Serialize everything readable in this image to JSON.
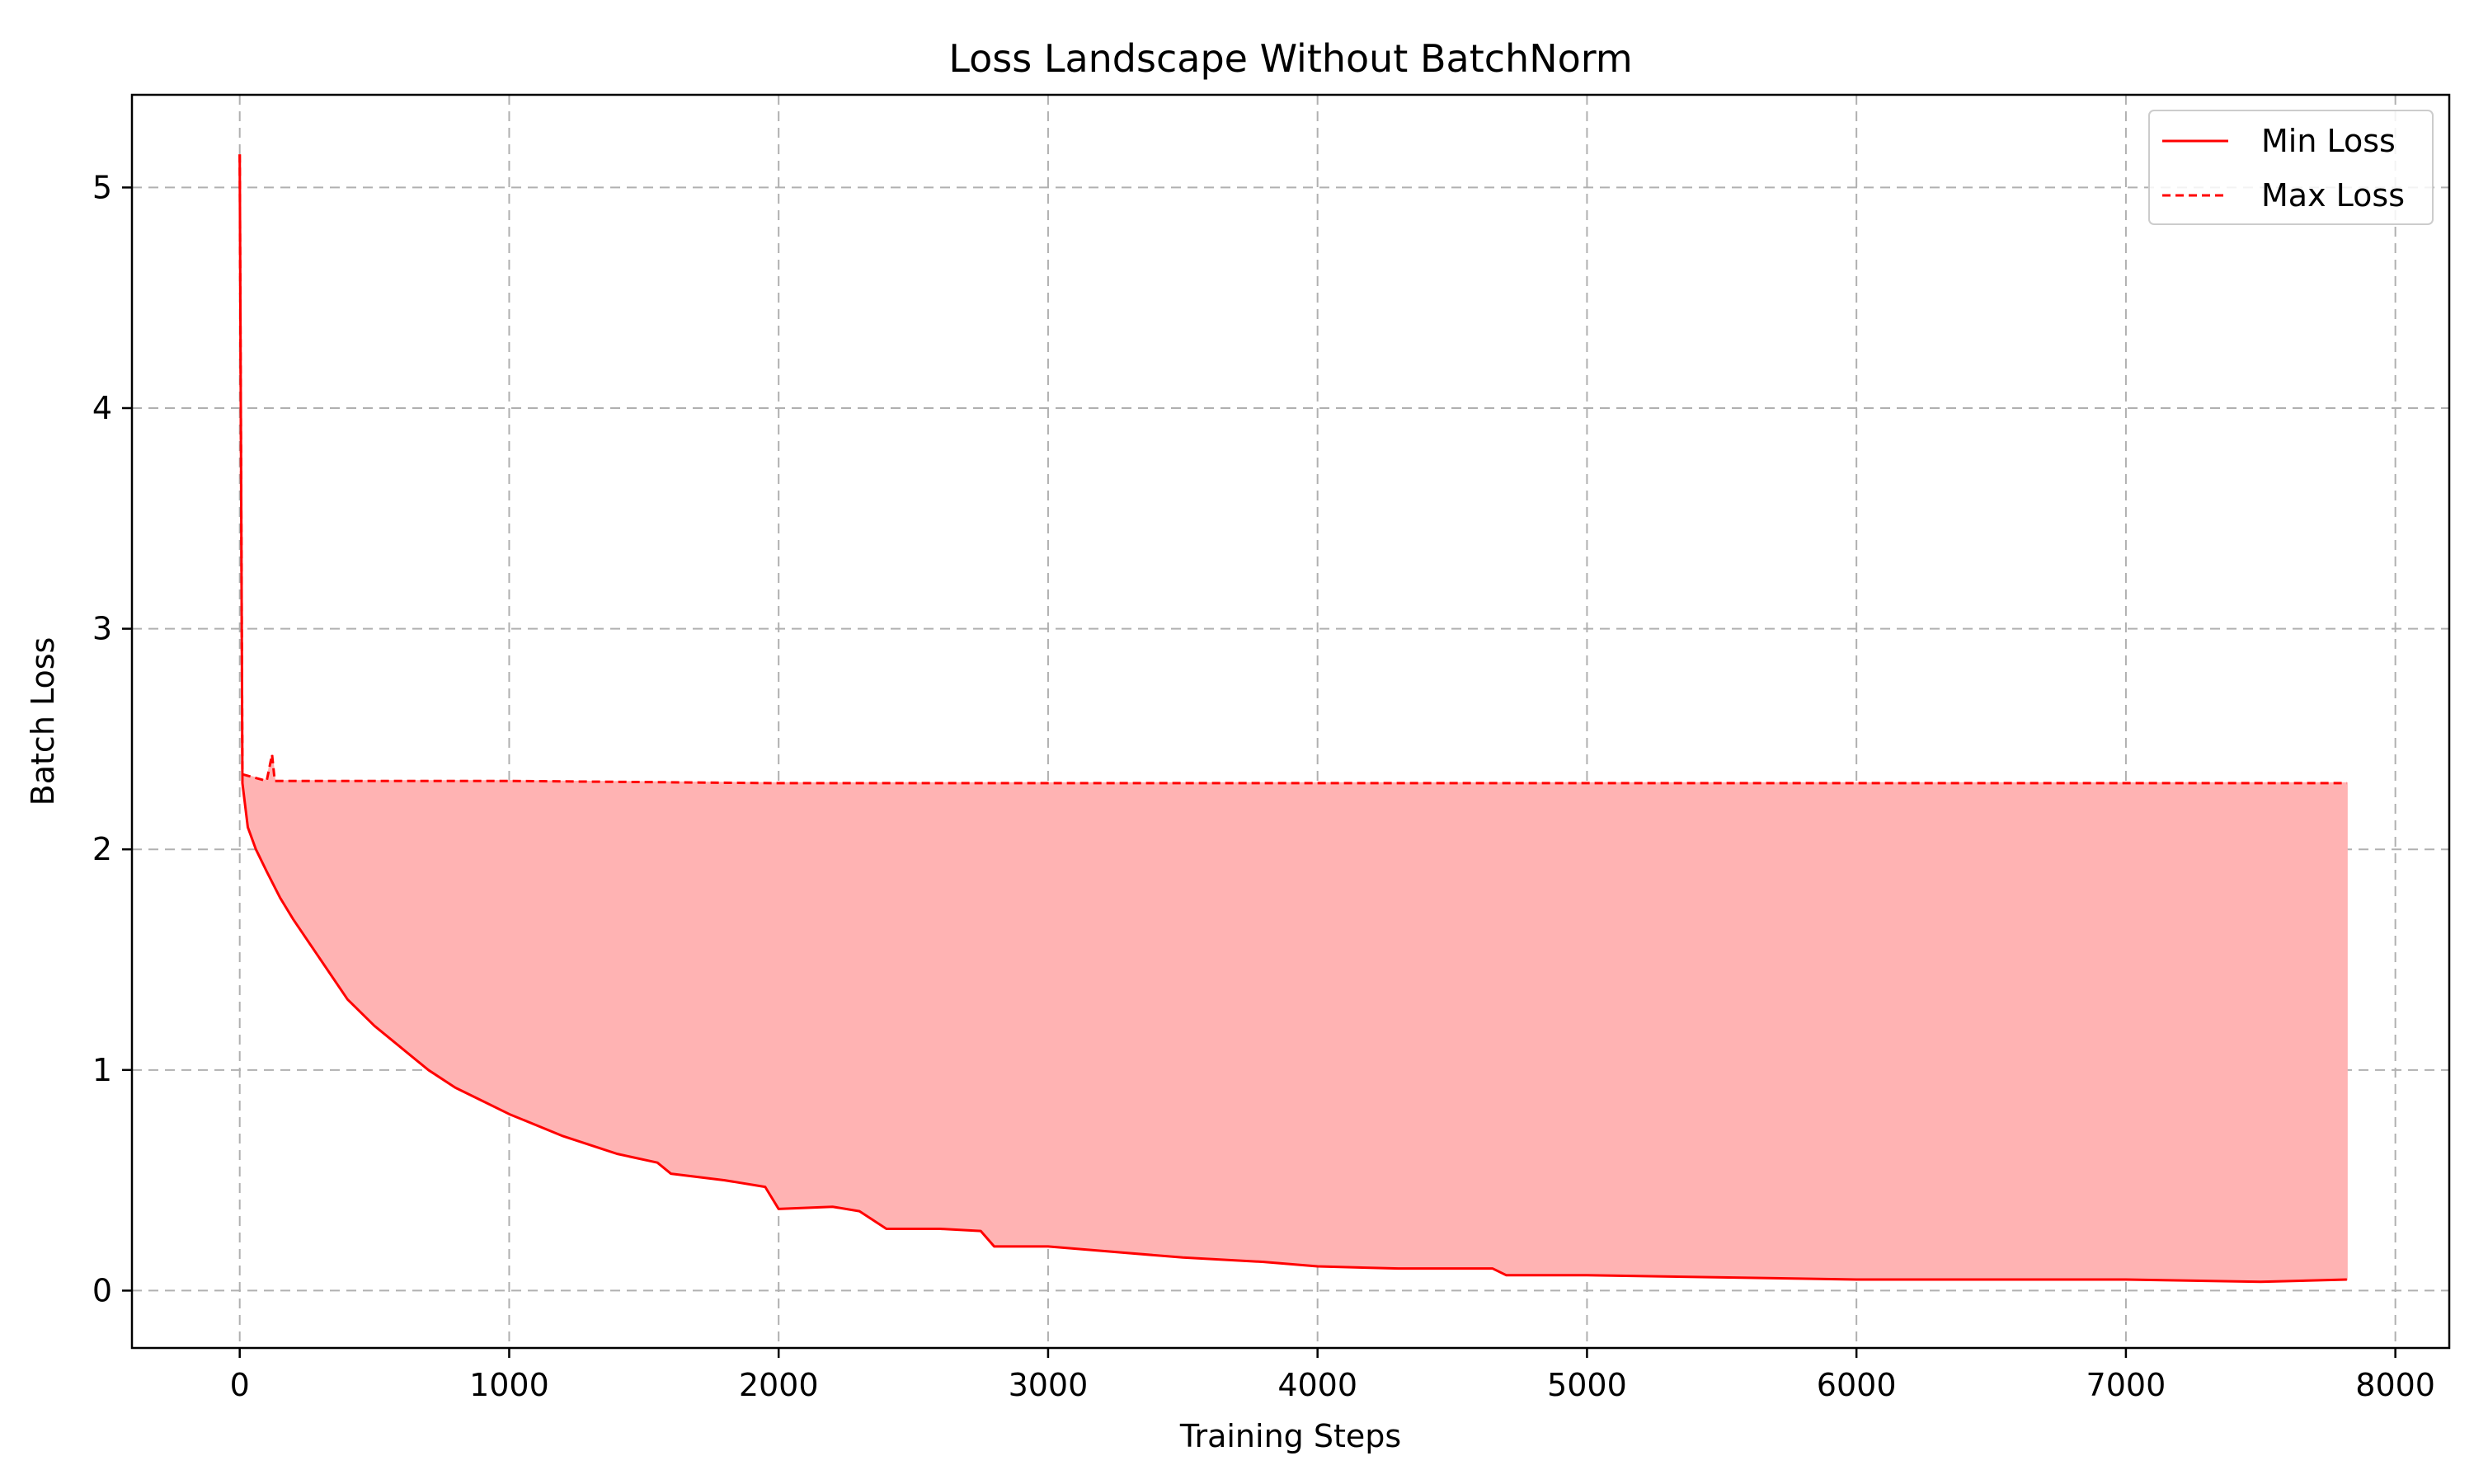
{
  "chart_data": {
    "type": "line",
    "title": "Loss Landscape Without BatchNorm",
    "xlabel": "Training Steps",
    "ylabel": "Batch Loss",
    "xlim": [
      -400,
      8200
    ],
    "ylim": [
      -0.26,
      5.42
    ],
    "xticks": [
      0,
      1000,
      2000,
      3000,
      4000,
      5000,
      6000,
      7000,
      8000
    ],
    "yticks": [
      0,
      1,
      2,
      3,
      4,
      5
    ],
    "grid": true,
    "legend_position": "top-right",
    "fill_between": true,
    "colors": {
      "line": "#ff0000",
      "fill": "#ffb3b3"
    },
    "series": [
      {
        "name": "Min Loss",
        "style": "solid",
        "x": [
          0,
          10,
          30,
          60,
          100,
          150,
          200,
          300,
          400,
          500,
          600,
          700,
          800,
          900,
          1000,
          1200,
          1400,
          1550,
          1600,
          1800,
          1950,
          2000,
          2200,
          2300,
          2400,
          2600,
          2750,
          2800,
          3000,
          3200,
          3500,
          3800,
          4000,
          4300,
          4650,
          4700,
          5000,
          5500,
          6000,
          6500,
          7000,
          7500,
          7820
        ],
        "y": [
          5.15,
          2.3,
          2.1,
          2.0,
          1.9,
          1.78,
          1.68,
          1.5,
          1.32,
          1.2,
          1.1,
          1.0,
          0.92,
          0.86,
          0.8,
          0.7,
          0.62,
          0.58,
          0.53,
          0.5,
          0.47,
          0.37,
          0.38,
          0.36,
          0.28,
          0.28,
          0.27,
          0.2,
          0.2,
          0.18,
          0.15,
          0.13,
          0.11,
          0.1,
          0.1,
          0.07,
          0.07,
          0.06,
          0.05,
          0.05,
          0.05,
          0.04,
          0.05
        ]
      },
      {
        "name": "Max Loss",
        "style": "dashed",
        "x": [
          0,
          10,
          100,
          120,
          130,
          500,
          1000,
          2000,
          3000,
          4000,
          5000,
          6000,
          7000,
          7820
        ],
        "y": [
          5.15,
          2.34,
          2.31,
          2.43,
          2.31,
          2.31,
          2.31,
          2.3,
          2.3,
          2.3,
          2.3,
          2.3,
          2.3,
          2.3
        ]
      }
    ]
  }
}
